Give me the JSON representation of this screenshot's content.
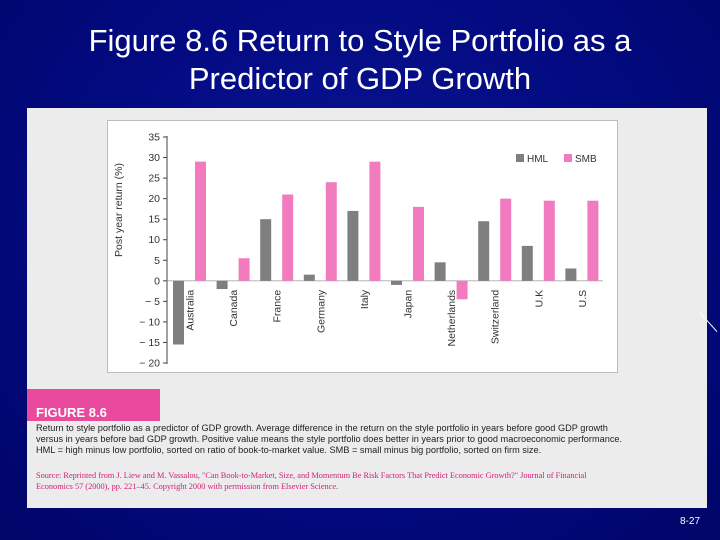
{
  "slide": {
    "title_line1": "Figure 8.6 Return to Style Portfolio as a",
    "title_line2": "Predictor of GDP Growth",
    "page_number": "8-27"
  },
  "figure": {
    "label": "FIGURE 8.6",
    "caption_lines": [
      "Return to style portfolio as a predictor of GDP growth. Average difference in the return on the style portfolio in years before good GDP growth",
      "versus in years before bad GDP growth. Positive value means the style portfolio does better in years prior to good macroeconomic performance.",
      "HML = high minus low portfolio, sorted on ratio of book-to-market value. SMB = small minus big portfolio, sorted on firm size."
    ],
    "source_lines": [
      "Source: Reprinted from J. Liew and M. Vassalou, \"Can Book-to-Market, Size, and Momentum Be Risk Factors That Predict Economic Growth?\" Journal of Financial",
      "Economics 57 (2000), pp. 221–45. Copyright 2000 with permission from Elsevier Science."
    ]
  },
  "colors": {
    "HML": "#7f7f7f",
    "SMB": "#f27bbf"
  },
  "chart_data": {
    "type": "bar",
    "categories": [
      "Australia",
      "Canada",
      "France",
      "Germany",
      "Italy",
      "Japan",
      "Netherlands",
      "Switzerland",
      "U.K",
      "U.S"
    ],
    "series": [
      {
        "name": "HML",
        "values": [
          -15.5,
          -2,
          15,
          1.5,
          17,
          -1,
          4.5,
          14.5,
          8.5,
          3
        ]
      },
      {
        "name": "SMB",
        "values": [
          29,
          5.5,
          21,
          24,
          29,
          18,
          -4.5,
          20,
          19.5,
          19.5
        ]
      }
    ],
    "ylabel": "Post year return (%)",
    "ylim": [
      -20,
      35
    ],
    "yticks": [
      35,
      30,
      25,
      20,
      15,
      10,
      5,
      0,
      -5,
      -10,
      -15,
      -20
    ],
    "ytick_labels": [
      "35",
      "30",
      "25",
      "20",
      "15",
      "10",
      "5",
      "0",
      "− 5",
      "− 10",
      "− 15",
      "− 20"
    ],
    "legend_position": "top-right",
    "grid": false
  }
}
